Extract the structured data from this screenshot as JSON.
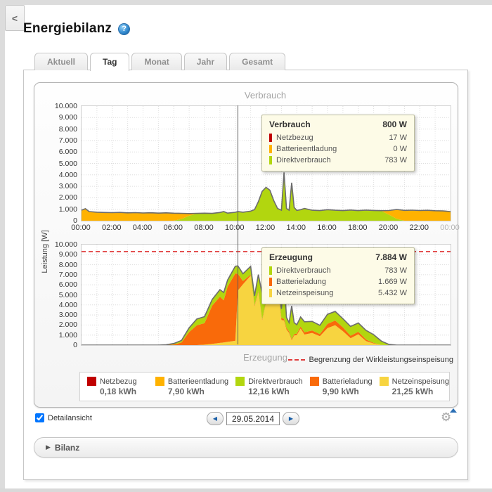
{
  "window": {
    "back_label": "<"
  },
  "header": {
    "title": "Energiebilanz",
    "help_icon": "?"
  },
  "tabs": [
    {
      "label": "Aktuell",
      "active": false
    },
    {
      "label": "Tag",
      "active": true
    },
    {
      "label": "Monat",
      "active": false
    },
    {
      "label": "Jahr",
      "active": false
    },
    {
      "label": "Gesamt",
      "active": false
    }
  ],
  "chart_panel": {
    "upper_title": "Verbrauch",
    "lower_title": "Erzeugung",
    "y_axis_label": "Leistung [W]",
    "y_ticks": [
      "10.000",
      "9.000",
      "8.000",
      "7.000",
      "6.000",
      "5.000",
      "4.000",
      "3.000",
      "2.000",
      "1.000",
      "0"
    ],
    "x_ticks": [
      "00:00",
      "02:00",
      "04:00",
      "06:00",
      "08:00",
      "10:00",
      "12:00",
      "14:00",
      "16:00",
      "18:00",
      "20:00",
      "22:00",
      "00:00"
    ],
    "limit_legend_label": "Begrenzung der Wirkleistungseinspeisung",
    "tooltip_upper": {
      "title": "Verbrauch",
      "total": "800 W",
      "rows": [
        {
          "name": "Netzbezug",
          "value": "17 W",
          "color": "#C00000"
        },
        {
          "name": "Batterieentladung",
          "value": "0 W",
          "color": "#FFB200"
        },
        {
          "name": "Direktverbrauch",
          "value": "783 W",
          "color": "#B2D60F"
        }
      ]
    },
    "tooltip_lower": {
      "title": "Erzeugung",
      "total": "7.884 W",
      "rows": [
        {
          "name": "Direktverbrauch",
          "value": "783 W",
          "color": "#B2D60F"
        },
        {
          "name": "Batterieladung",
          "value": "1.669 W",
          "color": "#F96A0A"
        },
        {
          "name": "Netzeinspeisung",
          "value": "5.432 W",
          "color": "#F7D440"
        }
      ]
    },
    "legend": [
      {
        "name": "Netzbezug",
        "value": "0,18 kWh",
        "color": "#C00000"
      },
      {
        "name": "Batterieentladung",
        "value": "7,90 kWh",
        "color": "#FFB200"
      },
      {
        "name": "Direktverbrauch",
        "value": "12,16 kWh",
        "color": "#B2D60F"
      },
      {
        "name": "Batterieladung",
        "value": "9,90 kWh",
        "color": "#F96A0A"
      },
      {
        "name": "Netzeinspeisung",
        "value": "21,25 kWh",
        "color": "#F7D440"
      }
    ]
  },
  "chart_data": {
    "type": "area",
    "x_range": [
      0,
      24
    ],
    "y_range": [
      0,
      10000
    ],
    "x_hours": [
      0,
      0.25,
      0.5,
      1,
      1.5,
      2,
      2.5,
      3,
      3.5,
      4,
      4.5,
      5,
      5.5,
      6,
      6.5,
      7,
      7.5,
      8,
      8.5,
      9,
      9.25,
      9.5,
      10,
      10.17,
      10.5,
      11,
      11.25,
      11.5,
      11.75,
      12,
      12.25,
      12.5,
      12.75,
      13,
      13.17,
      13.33,
      13.5,
      13.67,
      13.83,
      14,
      14.25,
      14.5,
      15,
      15.5,
      16,
      16.5,
      17,
      17.5,
      18,
      18.5,
      19,
      19.5,
      20,
      20.5,
      21,
      21.5,
      22,
      22.5,
      23,
      23.5,
      24
    ],
    "upper": {
      "title": "Verbrauch",
      "series": [
        {
          "name": "Direktverbrauch",
          "color": "#B2D60F",
          "values": [
            0,
            0,
            0,
            0,
            0,
            0,
            0,
            0,
            0,
            0,
            0,
            0,
            0,
            0,
            150,
            430,
            620,
            640,
            620,
            700,
            780,
            650,
            720,
            783,
            730,
            820,
            950,
            1650,
            2550,
            2900,
            2650,
            1750,
            1050,
            900,
            4200,
            1050,
            900,
            3300,
            1150,
            880,
            950,
            1050,
            900,
            870,
            950,
            900,
            870,
            920,
            870,
            910,
            880,
            860,
            520,
            160,
            0,
            0,
            0,
            0,
            0,
            0,
            0
          ]
        },
        {
          "name": "Batterieentladung",
          "color": "#FFB200",
          "values": [
            900,
            1030,
            780,
            730,
            700,
            690,
            710,
            670,
            690,
            660,
            680,
            650,
            670,
            640,
            480,
            180,
            0,
            0,
            0,
            0,
            0,
            0,
            0,
            0,
            0,
            0,
            0,
            0,
            0,
            0,
            0,
            0,
            0,
            0,
            0,
            0,
            0,
            0,
            0,
            0,
            0,
            0,
            0,
            0,
            0,
            0,
            0,
            0,
            0,
            0,
            0,
            0,
            350,
            800,
            880,
            900,
            870,
            890,
            850,
            830,
            780
          ]
        },
        {
          "name": "Netzbezug",
          "color": "#C00000",
          "values": [
            20,
            20,
            15,
            15,
            15,
            15,
            15,
            15,
            15,
            15,
            15,
            15,
            15,
            15,
            15,
            15,
            15,
            15,
            15,
            15,
            15,
            15,
            17,
            17,
            15,
            15,
            15,
            15,
            15,
            15,
            15,
            15,
            15,
            15,
            15,
            15,
            15,
            15,
            15,
            15,
            15,
            15,
            15,
            15,
            15,
            15,
            15,
            15,
            15,
            15,
            15,
            15,
            20,
            20,
            20,
            20,
            20,
            20,
            20,
            20,
            20
          ]
        }
      ]
    },
    "lower": {
      "title": "Erzeugung",
      "limit_value": 9300,
      "series": [
        {
          "name": "Netzeinspeisung",
          "color": "#F7D440",
          "values": [
            0,
            0,
            0,
            0,
            0,
            0,
            0,
            0,
            0,
            0,
            0,
            0,
            0,
            0,
            0,
            0,
            0,
            40,
            120,
            220,
            260,
            320,
            430,
            5432,
            6050,
            6900,
            3850,
            5250,
            2450,
            4200,
            4300,
            4850,
            5650,
            2500,
            2450,
            1550,
            1200,
            480,
            950,
            1000,
            1650,
            1050,
            1200,
            880,
            1700,
            1980,
            1380,
            680,
            1080,
            400,
            160,
            20,
            0,
            0,
            0,
            0,
            0,
            0,
            0,
            0,
            0
          ]
        },
        {
          "name": "Batterieladung",
          "color": "#F96A0A",
          "values": [
            0,
            0,
            0,
            0,
            0,
            0,
            0,
            0,
            0,
            0,
            0,
            0,
            0,
            60,
            260,
            1300,
            1980,
            2150,
            3800,
            4600,
            4200,
            5500,
            6700,
            1669,
            320,
            120,
            100,
            120,
            100,
            110,
            120,
            180,
            200,
            200,
            150,
            160,
            140,
            120,
            140,
            150,
            200,
            220,
            260,
            220,
            420,
            470,
            380,
            260,
            250,
            160,
            60,
            0,
            0,
            0,
            0,
            0,
            0,
            0,
            0,
            0,
            0
          ]
        },
        {
          "name": "Direktverbrauch",
          "color": "#B2D60F",
          "values": [
            0,
            0,
            0,
            0,
            0,
            0,
            0,
            0,
            0,
            0,
            0,
            0,
            30,
            100,
            200,
            430,
            620,
            640,
            620,
            700,
            780,
            650,
            720,
            783,
            730,
            820,
            950,
            1650,
            2550,
            2900,
            2650,
            1750,
            1050,
            900,
            4200,
            1050,
            900,
            3300,
            1150,
            880,
            950,
            1050,
            900,
            870,
            950,
            900,
            870,
            920,
            870,
            910,
            820,
            380,
            60,
            0,
            0,
            0,
            0,
            0,
            0,
            0,
            0
          ]
        }
      ]
    }
  },
  "controls": {
    "detail_checkbox_label": "Detailansicht",
    "detail_checked": true,
    "prev_icon": "◀",
    "next_icon": "▶",
    "date_value": "29.05.2014",
    "gear_icon": "⚙"
  },
  "bilanz": {
    "label": "Bilanz",
    "arrow_icon": "▶"
  }
}
